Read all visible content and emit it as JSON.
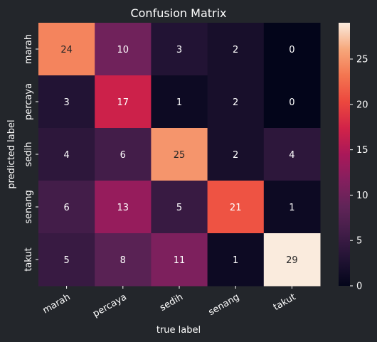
{
  "colors": {
    "background": "#23262b",
    "text": "#ffffff",
    "cell_text_dark": "#262626",
    "colormap": "rocket"
  },
  "chart_data": {
    "type": "heatmap",
    "title": "Confusion Matrix",
    "xlabel": "true label",
    "ylabel": "predicted label",
    "x_categories": [
      "marah",
      "percaya",
      "sedih",
      "senang",
      "takut"
    ],
    "y_categories": [
      "marah",
      "percaya",
      "sedih",
      "senang",
      "takut"
    ],
    "values": [
      [
        24,
        10,
        3,
        2,
        0
      ],
      [
        3,
        17,
        1,
        2,
        0
      ],
      [
        4,
        6,
        25,
        2,
        4
      ],
      [
        6,
        13,
        5,
        21,
        1
      ],
      [
        5,
        8,
        11,
        1,
        29
      ]
    ],
    "vmin": 0,
    "vmax": 29,
    "colorbar": {
      "ticks": [
        0,
        5,
        10,
        15,
        20,
        25
      ]
    }
  }
}
